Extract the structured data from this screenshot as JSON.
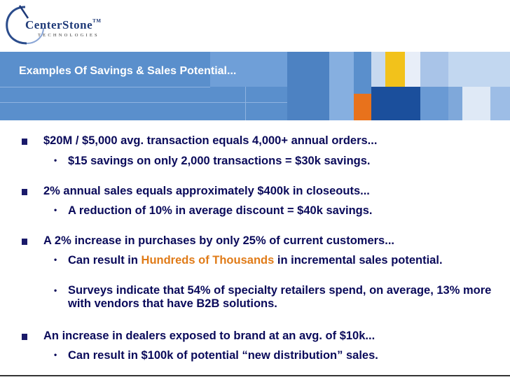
{
  "logo": {
    "name": "CenterStone",
    "tm": "TM",
    "sub": "TECHNOLOGIES"
  },
  "banner": {
    "title": "Examples Of Savings & Sales Potential..."
  },
  "bullets": [
    {
      "text": "$20M / $5,000 avg. transaction equals 4,000+ annual orders...",
      "sub": [
        {
          "text": "$15 savings on only 2,000 transactions = $30k savings."
        }
      ]
    },
    {
      "text": "2% annual sales equals approximately $400k in closeouts...",
      "sub": [
        {
          "text": "A reduction of 10% in average discount = $40k savings."
        }
      ]
    },
    {
      "text": "A 2% increase in purchases by only 25% of current customers...",
      "sub": [
        {
          "pre": "Can result in ",
          "highlight": "Hundreds of Thousands",
          "post": " in incremental sales potential."
        },
        {
          "text": "Surveys indicate that 54% of specialty retailers spend, on average, 13% more with vendors that  have B2B solutions."
        }
      ]
    },
    {
      "text": "An increase in dealers exposed to brand at an avg. of $10k...",
      "sub": [
        {
          "text": "Can result in $100k of potential “new distribution” sales."
        }
      ]
    }
  ],
  "colors": {
    "banner": "#5a8fcc",
    "text": "#0a0a5a",
    "highlight": "#e07b18",
    "accent_orange": "#e8721c",
    "accent_yellow": "#f2c21b",
    "accent_navy": "#1b4f9c"
  }
}
